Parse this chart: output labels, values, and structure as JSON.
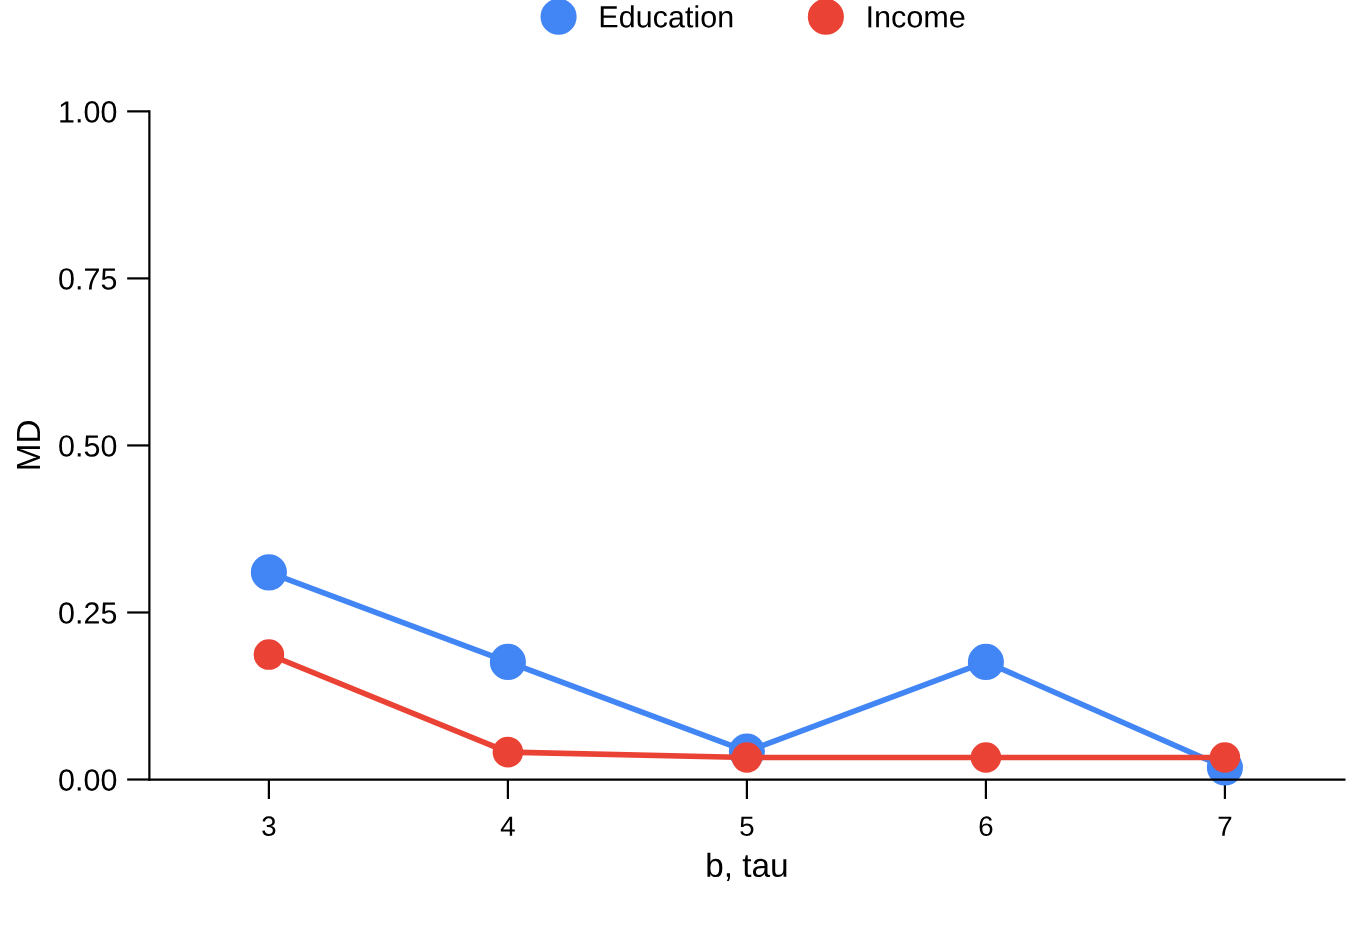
{
  "chart_data": {
    "type": "line",
    "xlabel": "b, tau",
    "ylabel": "MD",
    "x": [
      3,
      4,
      5,
      6,
      7
    ],
    "series": [
      {
        "name": "Education",
        "color": "#4285f4",
        "values": [
          0.31,
          0.176,
          0.042,
          0.176,
          0.018
        ]
      },
      {
        "name": "Income",
        "color": "#ea4335",
        "values": [
          0.187,
          0.041,
          0.033,
          0.033,
          0.033
        ]
      }
    ],
    "xlim": [
      2.5,
      7.5
    ],
    "xticks": [
      3,
      4,
      5,
      6,
      7
    ],
    "ylim": [
      0,
      1
    ],
    "yticks": [
      {
        "value": 0,
        "label": "0.00"
      },
      {
        "value": 0.25,
        "label": "0.25"
      },
      {
        "value": 0.5,
        "label": "0.50"
      },
      {
        "value": 0.75,
        "label": "0.75"
      },
      {
        "value": 1,
        "label": "1.00"
      }
    ],
    "grid": false,
    "legend": "top",
    "marker": "circle",
    "line_style": "solid"
  }
}
